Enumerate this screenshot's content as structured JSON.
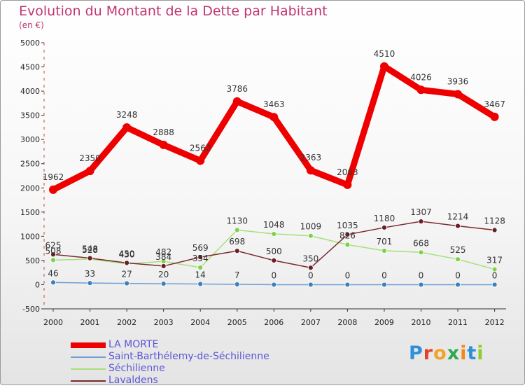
{
  "title": "Evolution du Montant de la Dette par Habitant",
  "unit_label": "(en €)",
  "brand": {
    "letters": [
      "P",
      "r",
      "o",
      "x",
      "i",
      "t",
      "i"
    ],
    "colors": [
      "#2f8fd8",
      "#e2422b",
      "#f2a12b",
      "#2fa84f",
      "#f08a1c",
      "#2f8fd8",
      "#8fcb2f"
    ]
  },
  "chart_data": {
    "type": "line",
    "title": "Evolution du Montant de la Dette par Habitant",
    "ylabel": "(en €)",
    "xlabel": "",
    "x": [
      "2000",
      "2001",
      "2002",
      "2003",
      "2004",
      "2005",
      "2006",
      "2007",
      "2008",
      "2009",
      "2010",
      "2011",
      "2012"
    ],
    "ylim": [
      -500,
      5000
    ],
    "yticks": [
      "-500",
      "0",
      "500",
      "1000",
      "1500",
      "2000",
      "2500",
      "3000",
      "3500",
      "4000",
      "4500",
      "5000"
    ],
    "grid": false,
    "legend_position": "bottom-left",
    "series": [
      {
        "name": "LA MORTE",
        "color": "#ee0000",
        "marker_color": "#ee0000",
        "values": [
          1962,
          2350,
          3248,
          2888,
          2562,
          3786,
          3463,
          2363,
          2063,
          4510,
          4026,
          3936,
          3467
        ],
        "labels": [
          "1962",
          "2350",
          "3248",
          "2888",
          "2562",
          "3786",
          "3463",
          "2363",
          "2063",
          "4510",
          "4026",
          "3936",
          "3467"
        ]
      },
      {
        "name": "Saint-Barthélemy-de-Séchilienne",
        "color": "#6f9ed3",
        "marker_color": "#3f7fbf",
        "values": [
          46,
          33,
          27,
          20,
          14,
          7,
          0,
          0,
          0,
          0,
          0,
          0,
          0
        ],
        "labels": [
          "46",
          "33",
          "27",
          "20",
          "14",
          "7",
          "0",
          "0",
          "0",
          "0",
          "0",
          "0",
          "0"
        ]
      },
      {
        "name": "Séchilienne",
        "color": "#a6e07a",
        "marker_color": "#7ed14a",
        "values": [
          508,
          528,
          430,
          482,
          354,
          1130,
          1048,
          1009,
          826,
          701,
          668,
          525,
          317
        ],
        "labels": [
          "508",
          "528",
          "430",
          "482",
          "354",
          "1130",
          "1048",
          "1009",
          "826",
          "701",
          "668",
          "525",
          "317"
        ]
      },
      {
        "name": "Lavaldens",
        "color": "#7a2a2f",
        "marker_color": "#6a1f24",
        "values": [
          625,
          548,
          450,
          384,
          569,
          698,
          500,
          350,
          1035,
          1180,
          1307,
          1214,
          1128
        ],
        "labels": [
          "625",
          "548",
          "450",
          "384",
          "569",
          "698",
          "500",
          "350",
          "1035",
          "1180",
          "1307",
          "1214",
          "1128"
        ]
      }
    ]
  }
}
